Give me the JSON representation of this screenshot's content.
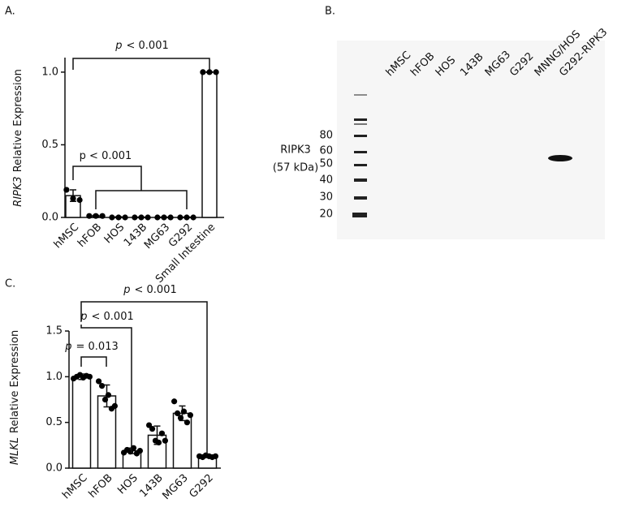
{
  "panel_labels": [
    "A.",
    "B.",
    "C."
  ],
  "chart_data": [
    {
      "type": "bar",
      "y_label": {
        "gene": "RIPK3",
        "text": "Relative Expression"
      },
      "categories": [
        "hMSC",
        "hFOB",
        "HOS",
        "143B",
        "MG63",
        "G292",
        "Small Intestine"
      ],
      "values": [
        0.15,
        0.01,
        0.003,
        0.002,
        0.002,
        0.002,
        1.0
      ],
      "errors": [
        0.04,
        0.005,
        0.002,
        0.001,
        0.001,
        0.001,
        0.002
      ],
      "points": [
        [
          0.19,
          0.13,
          0.12
        ],
        [
          0.01,
          0.01,
          0.01
        ],
        [
          0,
          0,
          0
        ],
        [
          0,
          0,
          0
        ],
        [
          0,
          0,
          0
        ],
        [
          0,
          0,
          0
        ],
        [
          1.0,
          1.0,
          1.0
        ]
      ],
      "color": "#ffffff",
      "ylim": [
        0,
        1.1
      ],
      "yticks": [
        {
          "value": 0,
          "label": "0.0"
        },
        {
          "value": 0.5,
          "label": "0.5"
        },
        {
          "value": 1,
          "label": "1.0"
        }
      ],
      "annotations": [
        {
          "symbol": "p",
          "text": "< 0.001"
        },
        {
          "text": "p < 0.001"
        }
      ]
    },
    {
      "type": "bar",
      "y_label": {
        "gene": "MLKL",
        "text": "Relative Expression"
      },
      "categories": [
        "hMSC",
        "hFOB",
        "HOS",
        "143B",
        "MG63",
        "G292"
      ],
      "values": [
        1.0,
        0.79,
        0.19,
        0.36,
        0.6,
        0.13
      ],
      "errors": [
        0.03,
        0.12,
        0.03,
        0.1,
        0.08,
        0.01
      ],
      "points": [
        [
          0.98,
          1.0,
          1.02,
          0.99,
          1.01,
          1.0
        ],
        [
          0.95,
          0.9,
          0.75,
          0.8,
          0.65,
          0.68
        ],
        [
          0.17,
          0.2,
          0.18,
          0.22,
          0.16,
          0.19
        ],
        [
          0.47,
          0.43,
          0.3,
          0.28,
          0.38,
          0.3
        ],
        [
          0.73,
          0.6,
          0.55,
          0.62,
          0.5,
          0.58
        ],
        [
          0.13,
          0.12,
          0.14,
          0.13,
          0.12,
          0.13
        ]
      ],
      "color": "#ffffff",
      "ylim": [
        0,
        1.5
      ],
      "yticks": [
        {
          "value": 0,
          "label": "0.0"
        },
        {
          "value": 0.5,
          "label": "0.5"
        },
        {
          "value": 1,
          "label": "1.0"
        },
        {
          "value": 1.5,
          "label": "1.5"
        }
      ],
      "annotations": [
        {
          "symbol": "p",
          "text": "< 0.001"
        },
        {
          "symbol": "p",
          "text": "< 0.001"
        },
        {
          "symbol": "p",
          "text": "= 0.013"
        }
      ]
    }
  ],
  "blot": {
    "lanes": [
      "hMSC",
      "hFOB",
      "HOS",
      "143B",
      "MG63",
      "G292",
      "MNNG/HOS",
      "G292-RIPK3"
    ],
    "markers": [
      80,
      60,
      50,
      40,
      30,
      20
    ],
    "protein": "RIPK3",
    "size": "(57 kDa)"
  }
}
